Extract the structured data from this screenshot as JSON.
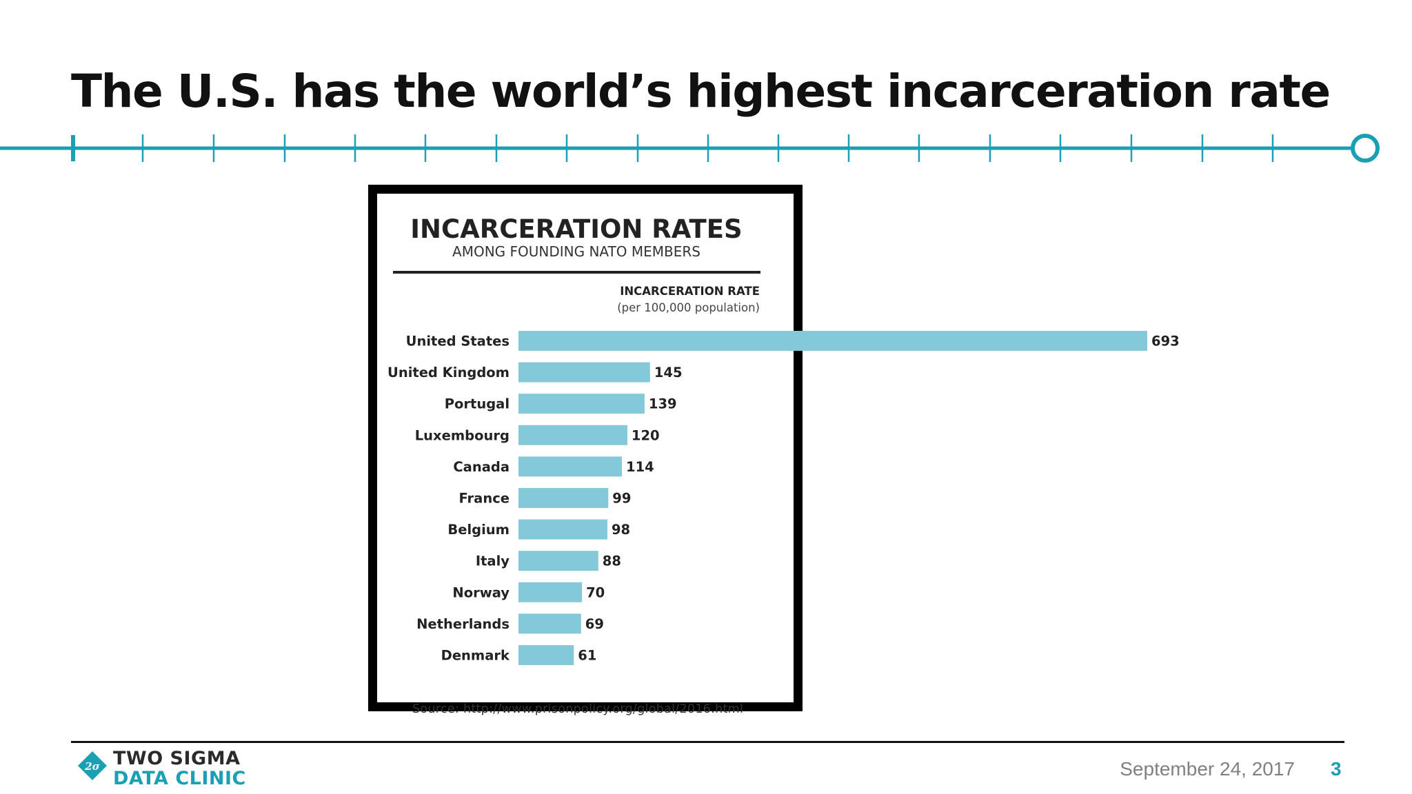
{
  "slide": {
    "title": "The U.S. has the world’s highest incarceration rate",
    "accent_color": "#1a9fb4",
    "date": "September 24, 2017",
    "page_number": "3"
  },
  "logo": {
    "line1": "TWO SIGMA",
    "line2": "DATA CLINIC",
    "mark_text": "2σ"
  },
  "source": "Source: http://www.prisonpolicy.org/global/2016.html",
  "chart_data": {
    "type": "bar",
    "orientation": "horizontal",
    "title": "INCARCERATION RATES",
    "subtitle": "AMONG FOUNDING NATO MEMBERS",
    "value_label": "INCARCERATION RATE",
    "value_unit": "(per 100,000 population)",
    "bar_color": "#84c9d9",
    "categories": [
      "United States",
      "United Kingdom",
      "Portugal",
      "Luxembourg",
      "Canada",
      "France",
      "Belgium",
      "Italy",
      "Norway",
      "Netherlands",
      "Denmark"
    ],
    "values": [
      693,
      145,
      139,
      120,
      114,
      99,
      98,
      88,
      70,
      69,
      61
    ],
    "xlim": [
      0,
      693
    ],
    "grid": false,
    "legend": "none",
    "data_labels": true
  }
}
